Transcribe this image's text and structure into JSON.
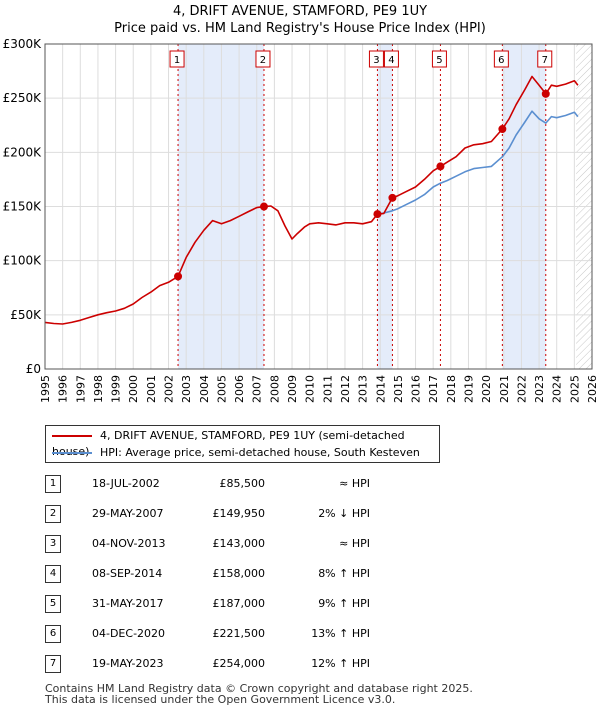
{
  "title_line1": "4, DRIFT AVENUE, STAMFORD, PE9 1UY",
  "title_line2": "Price paid vs. HM Land Registry's House Price Index (HPI)",
  "legend": {
    "property_label": "4, DRIFT AVENUE, STAMFORD, PE9 1UY (semi-detached house)",
    "hpi_label": "HPI: Average price, semi-detached house, South Kesteven"
  },
  "colors": {
    "property": "#cc0000",
    "hpi": "#5b8fd0",
    "shade": "#e4ecfa",
    "grid": "#dddddd"
  },
  "sales": [
    {
      "num": "1",
      "date": "18-JUL-2002",
      "price": "£85,500",
      "hpi": "≈ HPI"
    },
    {
      "num": "2",
      "date": "29-MAY-2007",
      "price": "£149,950",
      "hpi": "2% ↓ HPI"
    },
    {
      "num": "3",
      "date": "04-NOV-2013",
      "price": "£143,000",
      "hpi": "≈ HPI"
    },
    {
      "num": "4",
      "date": "08-SEP-2014",
      "price": "£158,000",
      "hpi": "8% ↑ HPI"
    },
    {
      "num": "5",
      "date": "31-MAY-2017",
      "price": "£187,000",
      "hpi": "9% ↑ HPI"
    },
    {
      "num": "6",
      "date": "04-DEC-2020",
      "price": "£221,500",
      "hpi": "13% ↑ HPI"
    },
    {
      "num": "7",
      "date": "19-MAY-2023",
      "price": "£254,000",
      "hpi": "12% ↑ HPI"
    }
  ],
  "footer_line1": "Contains HM Land Registry data © Crown copyright and database right 2025.",
  "footer_line2": "This data is licensed under the Open Government Licence v3.0.",
  "chart_data": {
    "type": "line",
    "title": "4, DRIFT AVENUE, STAMFORD, PE9 1UY",
    "subtitle": "Price paid vs. HM Land Registry's House Price Index (HPI)",
    "xlabel": "",
    "ylabel": "",
    "xlim": [
      1995,
      2026
    ],
    "ylim": [
      0,
      300000
    ],
    "x_ticks": [
      1995,
      1996,
      1997,
      1998,
      1999,
      2000,
      2001,
      2002,
      2003,
      2004,
      2005,
      2006,
      2007,
      2008,
      2009,
      2010,
      2011,
      2012,
      2013,
      2014,
      2015,
      2016,
      2017,
      2018,
      2019,
      2020,
      2021,
      2022,
      2023,
      2024,
      2025,
      2026
    ],
    "y_ticks": [
      {
        "value": 0,
        "label": "£0"
      },
      {
        "value": 50000,
        "label": "£50K"
      },
      {
        "value": 100000,
        "label": "£100K"
      },
      {
        "value": 150000,
        "label": "£150K"
      },
      {
        "value": 200000,
        "label": "£200K"
      },
      {
        "value": 250000,
        "label": "£250K"
      },
      {
        "value": 300000,
        "label": "£300K"
      }
    ],
    "grid": true,
    "shaded_periods": [
      [
        2002.54,
        2007.41
      ],
      [
        2013.84,
        2014.69
      ],
      [
        2020.92,
        2023.38
      ]
    ],
    "future_hatch_from": 2025.1,
    "sale_points": [
      {
        "label": "1",
        "x": 2002.54,
        "y": 85500
      },
      {
        "label": "2",
        "x": 2007.41,
        "y": 149950
      },
      {
        "label": "3",
        "x": 2013.84,
        "y": 143000
      },
      {
        "label": "4",
        "x": 2014.69,
        "y": 158000
      },
      {
        "label": "5",
        "x": 2017.41,
        "y": 187000
      },
      {
        "label": "6",
        "x": 2020.92,
        "y": 221500
      },
      {
        "label": "7",
        "x": 2023.38,
        "y": 254000
      }
    ],
    "series": [
      {
        "name": "4, DRIFT AVENUE, STAMFORD, PE9 1UY (semi-detached house)",
        "x": [
          1995,
          1995.5,
          1996,
          1996.5,
          1997,
          1997.5,
          1998,
          1998.5,
          1999,
          1999.5,
          2000,
          2000.5,
          2001,
          2001.5,
          2002,
          2002.54,
          2003,
          2003.5,
          2004,
          2004.5,
          2005,
          2005.5,
          2006,
          2006.5,
          2007,
          2007.41,
          2007.8,
          2008.2,
          2008.6,
          2009,
          2009.3,
          2009.7,
          2010,
          2010.5,
          2011,
          2011.5,
          2012,
          2012.5,
          2013,
          2013.5,
          2013.84,
          2014.2,
          2014.69,
          2015,
          2015.5,
          2016,
          2016.5,
          2017,
          2017.41,
          2017.8,
          2018.3,
          2018.8,
          2019.3,
          2019.8,
          2020.3,
          2020.92,
          2021.3,
          2021.7,
          2022.2,
          2022.6,
          2023,
          2023.38,
          2023.7,
          2024,
          2024.5,
          2025,
          2025.2
        ],
        "values": [
          43000,
          42000,
          41500,
          43000,
          45000,
          47500,
          50000,
          52000,
          53500,
          56000,
          60000,
          66000,
          71000,
          77000,
          80000,
          85500,
          103000,
          117000,
          128000,
          137000,
          134000,
          137000,
          141000,
          145000,
          149000,
          149950,
          150500,
          146000,
          132000,
          120000,
          125000,
          131000,
          134000,
          135000,
          134000,
          133000,
          135000,
          135000,
          134000,
          136000,
          143000,
          143500,
          158000,
          160000,
          164000,
          168000,
          175000,
          183000,
          187000,
          191000,
          196000,
          204000,
          207000,
          208000,
          210000,
          221500,
          231000,
          244000,
          258000,
          270000,
          262000,
          254000,
          262000,
          261000,
          263000,
          266000,
          262000
        ]
      },
      {
        "name": "HPI: Average price, semi-detached house, South Kesteven",
        "x": [
          2013.84,
          2014.2,
          2014.69,
          2015,
          2015.5,
          2016,
          2016.5,
          2017,
          2017.41,
          2017.8,
          2018.3,
          2018.8,
          2019.3,
          2019.8,
          2020.3,
          2020.92,
          2021.3,
          2021.7,
          2022.2,
          2022.6,
          2023,
          2023.38,
          2023.7,
          2024,
          2024.5,
          2025,
          2025.2
        ],
        "values": [
          143000,
          144000,
          146000,
          148000,
          152000,
          156000,
          161000,
          168000,
          171500,
          174000,
          178000,
          182000,
          185000,
          186000,
          187000,
          196000,
          204000,
          216000,
          228000,
          238000,
          231000,
          227000,
          233000,
          232000,
          234000,
          237000,
          233000
        ]
      }
    ]
  }
}
